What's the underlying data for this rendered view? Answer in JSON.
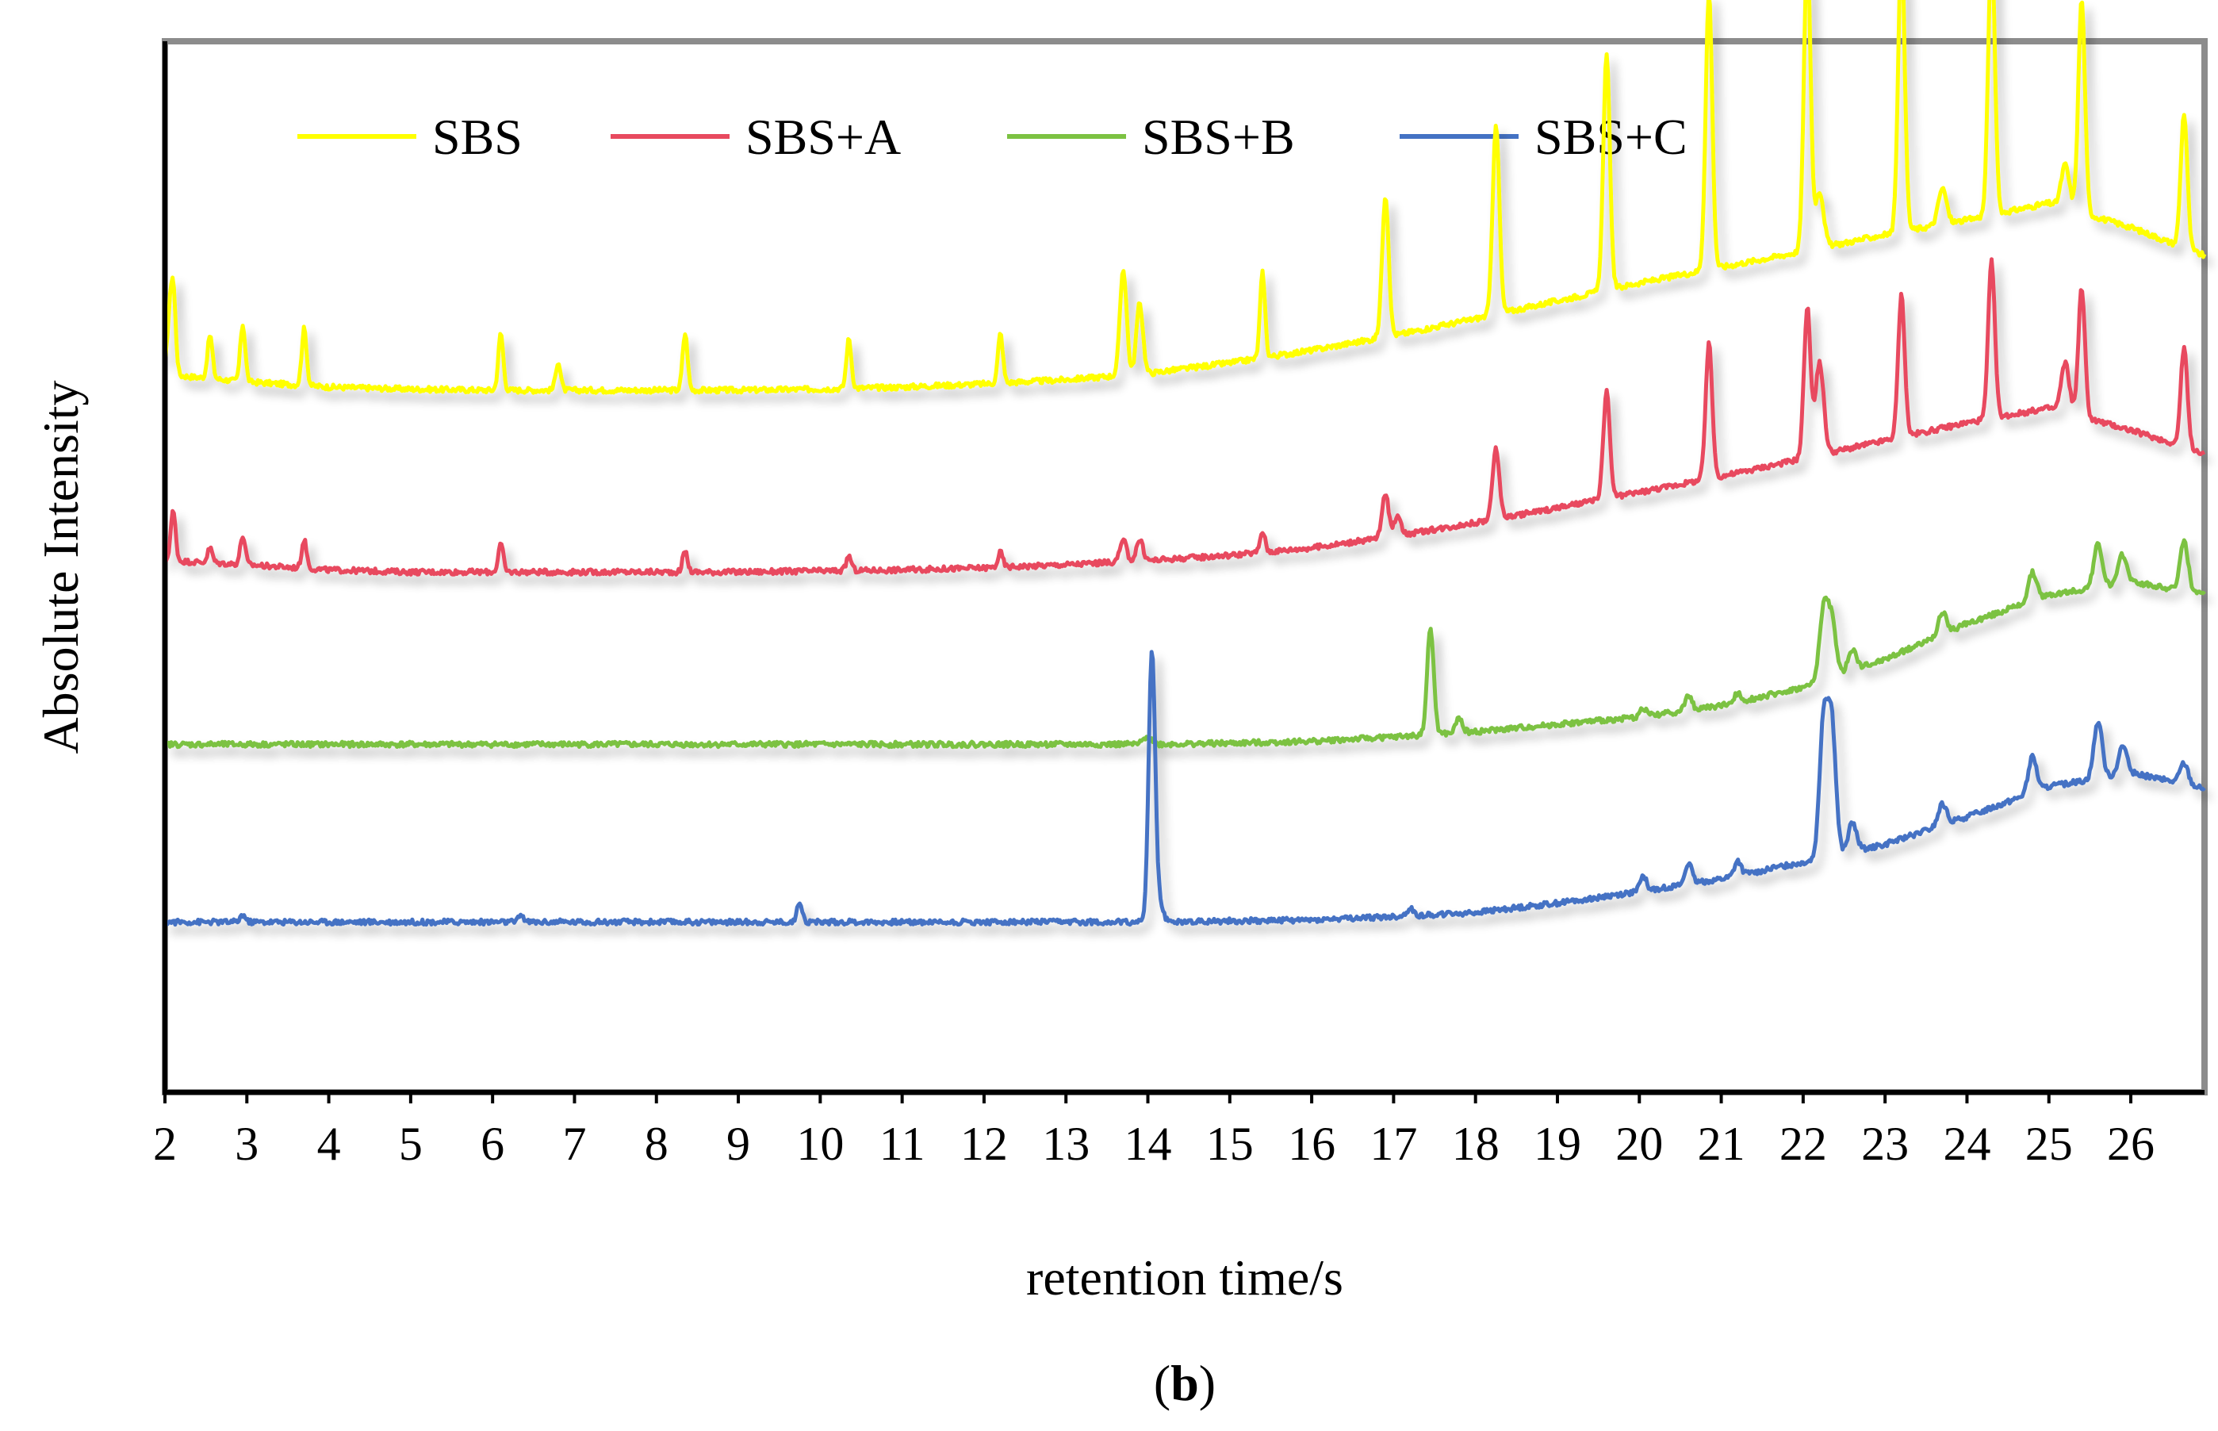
{
  "chart_data": {
    "type": "line",
    "title": "",
    "xlabel": "retention time/s",
    "ylabel": "Absolute Intensity",
    "caption_letter": "b",
    "xlim": [
      2,
      26.9
    ],
    "ylim": [
      0,
      100
    ],
    "x_ticks": [
      "2",
      "3",
      "4",
      "5",
      "6",
      "7",
      "8",
      "9",
      "10",
      "11",
      "12",
      "13",
      "14",
      "15",
      "16",
      "17",
      "18",
      "19",
      "20",
      "21",
      "22",
      "23",
      "24",
      "25",
      "26"
    ],
    "legend": {
      "placement": "top"
    },
    "series": [
      {
        "name": "SBS",
        "color": "#ffff00",
        "baseline": [
          [
            2,
            68.3
          ],
          [
            3,
            67.6
          ],
          [
            4,
            67.1
          ],
          [
            5,
            66.9
          ],
          [
            6,
            66.8
          ],
          [
            7,
            66.8
          ],
          [
            8,
            66.8
          ],
          [
            9,
            66.8
          ],
          [
            10,
            66.9
          ],
          [
            11,
            67.1
          ],
          [
            12,
            67.4
          ],
          [
            13,
            67.8
          ],
          [
            14,
            68.4
          ],
          [
            15,
            69.4
          ],
          [
            16,
            70.6
          ],
          [
            17,
            72.0
          ],
          [
            18,
            73.6
          ],
          [
            19,
            75.3
          ],
          [
            20,
            77.0
          ],
          [
            21,
            78.5
          ],
          [
            22,
            80.0
          ],
          [
            23,
            81.6
          ],
          [
            24,
            83.0
          ],
          [
            25,
            84.6
          ],
          [
            26,
            82.3
          ],
          [
            26.9,
            79.6
          ]
        ],
        "peaks": [
          [
            2.05,
            4.1,
            0.03
          ],
          [
            2.1,
            8.1,
            0.03
          ],
          [
            2.55,
            4.1,
            0.03
          ],
          [
            2.95,
            5.4,
            0.03
          ],
          [
            3.7,
            5.4,
            0.03
          ],
          [
            6.1,
            5.4,
            0.03
          ],
          [
            6.8,
            2.7,
            0.03
          ],
          [
            8.35,
            5.4,
            0.03
          ],
          [
            10.35,
            4.7,
            0.03
          ],
          [
            12.2,
            4.7,
            0.03
          ],
          [
            13.7,
            10.1,
            0.04
          ],
          [
            13.9,
            6.7,
            0.04
          ],
          [
            15.4,
            8.1,
            0.03
          ],
          [
            16.9,
            13.5,
            0.04
          ],
          [
            18.25,
            18.2,
            0.04
          ],
          [
            19.6,
            22.3,
            0.04
          ],
          [
            20.85,
            26.3,
            0.04
          ],
          [
            22.05,
            28.4,
            0.04
          ],
          [
            22.2,
            5.4,
            0.05
          ],
          [
            23.2,
            27.0,
            0.04
          ],
          [
            23.7,
            3.4,
            0.05
          ],
          [
            24.3,
            25.7,
            0.04
          ],
          [
            25.2,
            4.1,
            0.05
          ],
          [
            25.4,
            20.3,
            0.04
          ],
          [
            26.65,
            12.8,
            0.04
          ]
        ]
      },
      {
        "name": "SBS+A",
        "color": "#e84a5f",
        "baseline": [
          [
            2,
            50.6
          ],
          [
            3,
            50.2
          ],
          [
            4,
            49.7
          ],
          [
            5,
            49.5
          ],
          [
            6,
            49.5
          ],
          [
            7,
            49.5
          ],
          [
            8,
            49.5
          ],
          [
            9,
            49.5
          ],
          [
            10,
            49.6
          ],
          [
            11,
            49.7
          ],
          [
            12,
            49.9
          ],
          [
            13,
            50.2
          ],
          [
            14,
            50.6
          ],
          [
            15,
            51.1
          ],
          [
            16,
            51.8
          ],
          [
            17,
            52.9
          ],
          [
            18,
            54.2
          ],
          [
            19,
            55.6
          ],
          [
            20,
            57.1
          ],
          [
            21,
            58.6
          ],
          [
            22,
            60.3
          ],
          [
            23,
            62.0
          ],
          [
            24,
            63.7
          ],
          [
            25,
            65.1
          ],
          [
            26,
            63.0
          ],
          [
            26.9,
            60.8
          ]
        ],
        "peaks": [
          [
            2.1,
            4.7,
            0.03
          ],
          [
            2.55,
            1.4,
            0.03
          ],
          [
            2.95,
            2.7,
            0.03
          ],
          [
            3.7,
            2.7,
            0.03
          ],
          [
            6.1,
            2.7,
            0.03
          ],
          [
            8.35,
            2.0,
            0.03
          ],
          [
            10.35,
            1.4,
            0.03
          ],
          [
            12.2,
            1.4,
            0.03
          ],
          [
            13.7,
            2.0,
            0.04
          ],
          [
            13.9,
            2.0,
            0.04
          ],
          [
            15.4,
            2.0,
            0.03
          ],
          [
            16.9,
            4.1,
            0.04
          ],
          [
            17.05,
            2.0,
            0.04
          ],
          [
            18.25,
            6.8,
            0.04
          ],
          [
            19.6,
            10.1,
            0.04
          ],
          [
            20.85,
            12.8,
            0.04
          ],
          [
            22.05,
            14.2,
            0.04
          ],
          [
            22.2,
            8.8,
            0.05
          ],
          [
            23.2,
            13.5,
            0.04
          ],
          [
            24.3,
            14.9,
            0.04
          ],
          [
            25.2,
            4.7,
            0.05
          ],
          [
            25.4,
            12.2,
            0.04
          ],
          [
            26.65,
            9.5,
            0.04
          ]
        ]
      },
      {
        "name": "SBS+B",
        "color": "#7cc242",
        "baseline": [
          [
            2,
            33.1
          ],
          [
            3,
            33.1
          ],
          [
            4,
            33.1
          ],
          [
            5,
            33.1
          ],
          [
            6,
            33.1
          ],
          [
            7,
            33.1
          ],
          [
            8,
            33.1
          ],
          [
            9,
            33.1
          ],
          [
            10,
            33.1
          ],
          [
            11,
            33.1
          ],
          [
            12,
            33.1
          ],
          [
            13,
            33.1
          ],
          [
            14,
            33.1
          ],
          [
            15,
            33.2
          ],
          [
            16,
            33.4
          ],
          [
            17,
            33.8
          ],
          [
            18,
            34.3
          ],
          [
            19,
            35.0
          ],
          [
            20,
            35.7
          ],
          [
            21,
            36.8
          ],
          [
            22,
            38.5
          ],
          [
            23,
            41.2
          ],
          [
            24,
            44.6
          ],
          [
            25,
            47.3
          ],
          [
            26,
            48.6
          ],
          [
            26.9,
            47.3
          ]
        ],
        "peaks": [
          [
            14.0,
            0.8,
            0.05
          ],
          [
            17.45,
            10.1,
            0.04
          ],
          [
            17.8,
            1.4,
            0.04
          ],
          [
            20.05,
            0.8,
            0.04
          ],
          [
            20.6,
            1.4,
            0.04
          ],
          [
            21.2,
            0.8,
            0.04
          ],
          [
            22.25,
            6.8,
            0.05
          ],
          [
            22.35,
            5.4,
            0.05
          ],
          [
            22.6,
            2.0,
            0.05
          ],
          [
            23.7,
            2.0,
            0.05
          ],
          [
            24.8,
            2.7,
            0.05
          ],
          [
            25.6,
            4.1,
            0.05
          ],
          [
            25.9,
            2.7,
            0.05
          ],
          [
            26.65,
            4.7,
            0.05
          ]
        ]
      },
      {
        "name": "SBS+C",
        "color": "#4472c4",
        "baseline": [
          [
            2,
            16.2
          ],
          [
            3,
            16.2
          ],
          [
            4,
            16.2
          ],
          [
            5,
            16.2
          ],
          [
            6,
            16.2
          ],
          [
            7,
            16.2
          ],
          [
            8,
            16.2
          ],
          [
            9,
            16.2
          ],
          [
            10,
            16.2
          ],
          [
            11,
            16.2
          ],
          [
            12,
            16.2
          ],
          [
            13,
            16.2
          ],
          [
            14,
            16.2
          ],
          [
            15,
            16.3
          ],
          [
            16,
            16.4
          ],
          [
            17,
            16.7
          ],
          [
            18,
            17.1
          ],
          [
            19,
            18.0
          ],
          [
            20,
            19.1
          ],
          [
            21,
            20.3
          ],
          [
            22,
            21.9
          ],
          [
            23,
            23.6
          ],
          [
            24,
            26.2
          ],
          [
            25,
            29.1
          ],
          [
            26,
            30.4
          ],
          [
            26.9,
            28.9
          ]
        ],
        "peaks": [
          [
            2.95,
            0.7,
            0.03
          ],
          [
            6.35,
            0.7,
            0.03
          ],
          [
            9.75,
            2.0,
            0.03
          ],
          [
            14.05,
            25.7,
            0.04
          ],
          [
            14.15,
            1.4,
            0.04
          ],
          [
            17.2,
            0.7,
            0.04
          ],
          [
            20.05,
            1.4,
            0.04
          ],
          [
            20.6,
            2.0,
            0.04
          ],
          [
            21.2,
            1.4,
            0.04
          ],
          [
            22.25,
            12.8,
            0.05
          ],
          [
            22.35,
            12.2,
            0.05
          ],
          [
            22.6,
            2.7,
            0.05
          ],
          [
            23.7,
            2.0,
            0.05
          ],
          [
            24.8,
            3.4,
            0.05
          ],
          [
            25.6,
            5.4,
            0.05
          ],
          [
            25.9,
            2.7,
            0.05
          ],
          [
            26.65,
            2.0,
            0.05
          ]
        ]
      }
    ]
  }
}
